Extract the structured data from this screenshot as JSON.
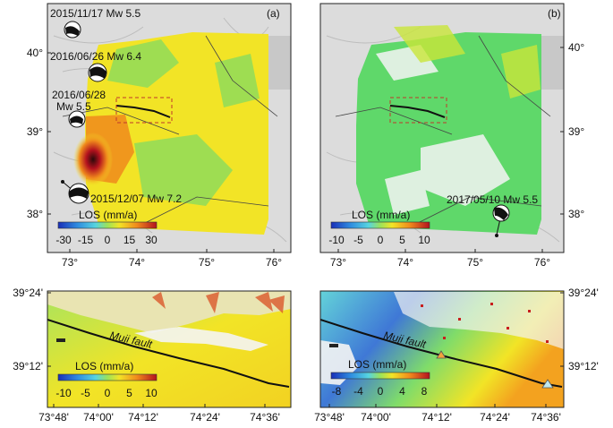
{
  "panel_a": {
    "label": "(a)",
    "events": [
      {
        "text": "2015/11/17 Mw 5.5"
      },
      {
        "text": "2016/06/26 Mw 6.4"
      },
      {
        "text": "2016/06/28"
      },
      {
        "text": "Mw 5.5"
      },
      {
        "text": "2015/12/07 Mw 7.2"
      }
    ],
    "colorbar": {
      "title": "LOS (mm/a)",
      "ticks": [
        "-30",
        "-15",
        "0",
        "15",
        "30"
      ]
    },
    "x_ticks": [
      "73°",
      "74°",
      "75°",
      "76°"
    ],
    "y_ticks": [
      "40°",
      "39°",
      "38°"
    ]
  },
  "panel_b": {
    "label": "(b)",
    "events": [
      {
        "text": "2017/05/10 Mw 5.5"
      }
    ],
    "colorbar": {
      "title": "LOS (mm/a)",
      "ticks": [
        "-10",
        "-5",
        "0",
        "5",
        "10"
      ]
    },
    "x_ticks": [
      "73°",
      "74°",
      "75°",
      "76°"
    ],
    "y_ticks": [
      "40°",
      "39°",
      "38°"
    ]
  },
  "panel_c": {
    "fault_label": "Muji fault",
    "colorbar": {
      "title": "LOS (mm/a)",
      "ticks": [
        "-10",
        "-5",
        "0",
        "5",
        "10"
      ]
    },
    "x_ticks": [
      "73°48'",
      "74°00'",
      "74°12'",
      "74°24'",
      "74°36'"
    ],
    "y_ticks": [
      "39°24'",
      "39°12'"
    ]
  },
  "panel_d": {
    "fault_label": "Muji fault",
    "colorbar": {
      "title": "LOS (mm/a)",
      "ticks": [
        "-8",
        "-4",
        "0",
        "4",
        "8"
      ]
    },
    "x_ticks": [
      "73°48'",
      "74°00'",
      "74°12'",
      "74°24'",
      "74°36'"
    ],
    "y_ticks": [
      "39°24'",
      "39°12'"
    ]
  },
  "colors": {
    "fault_line": "#111111",
    "box": "#c0392b",
    "hillshade": "#d4d4d4",
    "insar_yellow": "#f4e21c",
    "insar_green": "#5fd86a",
    "insar_red": "#c81e1e",
    "insar_blue": "#2b5ad8"
  }
}
